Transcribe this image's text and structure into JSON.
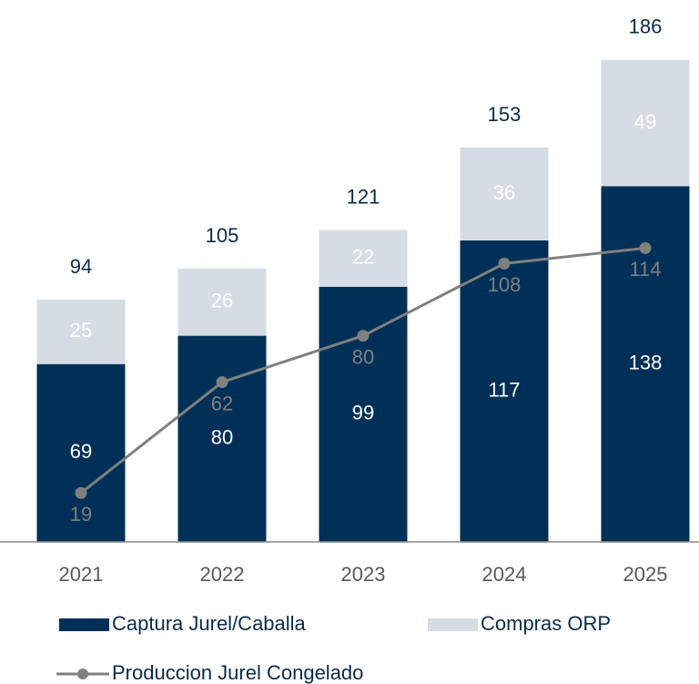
{
  "chart_data": {
    "type": "bar",
    "stacked": true,
    "categories": [
      "2021",
      "2022",
      "2023",
      "2024",
      "2025"
    ],
    "series": [
      {
        "name": "Captura Jurel/Caballa",
        "color": "#003057",
        "values": [
          69,
          80,
          99,
          117,
          138
        ]
      },
      {
        "name": "Compras ORP",
        "color": "#d6dce4",
        "values": [
          25,
          26,
          22,
          36,
          49
        ]
      },
      {
        "name": "Produccion Jurel Congelado",
        "color": "#808080",
        "type": "line",
        "values": [
          19,
          62,
          80,
          108,
          114
        ]
      }
    ],
    "totals": [
      94,
      105,
      121,
      153,
      186
    ]
  }
}
